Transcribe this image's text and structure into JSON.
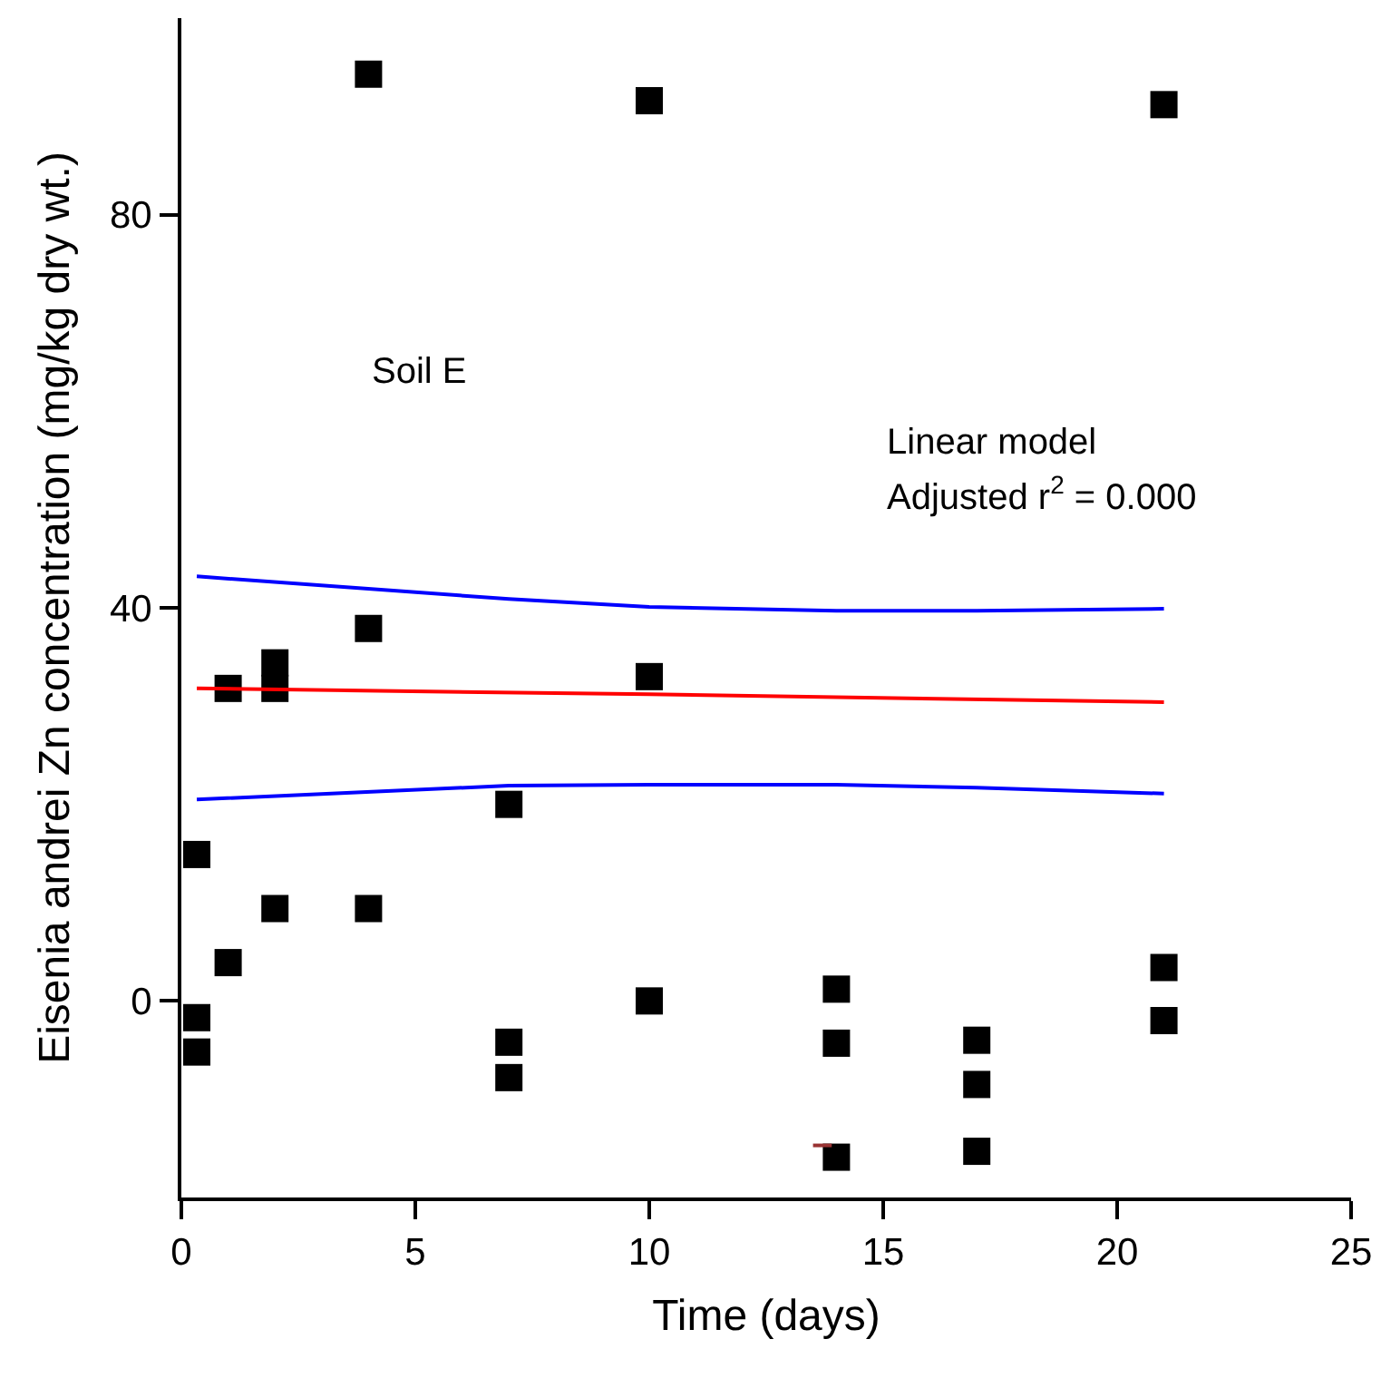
{
  "chart_data": {
    "type": "scatter",
    "xlabel": "Time (days)",
    "ylabel": "Eisenia andrei Zn concentration (mg/kg dry wt.)",
    "annotations": [
      "Soil E",
      "Linear model",
      "Adjusted r$^{2}$ = 0.000"
    ],
    "xlim": [
      0,
      25
    ],
    "xticks": [
      0,
      5,
      10,
      15,
      20,
      25
    ],
    "ylim": [
      -20,
      100
    ],
    "yticks": [
      0,
      40,
      80
    ],
    "series": [
      {
        "marker": "square",
        "color": "#000000",
        "x": [
          0.33,
          0.33,
          0.33,
          1,
          1,
          2,
          2,
          2,
          4,
          4,
          4,
          7,
          7,
          7,
          10,
          10,
          10,
          14,
          14,
          14,
          17,
          17,
          17,
          21,
          21,
          21
        ],
        "values": [
          14.9,
          -1.7,
          -5.2,
          31.8,
          3.9,
          34.4,
          31.8,
          9.4,
          94.3,
          37.9,
          9.4,
          20.0,
          -4.2,
          -7.8,
          91.6,
          33.0,
          0,
          1.2,
          -4.3,
          -15.9,
          -4.0,
          -8.5,
          -15.3,
          91.2,
          3.4,
          -2.0
        ]
      },
      {
        "type": "line",
        "marker": "none",
        "color": "#ff0000",
        "x": [
          0.33,
          10,
          21
        ],
        "values": [
          31.8,
          31.2,
          30.4
        ]
      },
      {
        "type": "line",
        "marker": "none",
        "color": "#0000ff",
        "x": [
          0.33,
          7,
          10,
          14,
          17,
          21
        ],
        "values": [
          43.2,
          40.9,
          40.1,
          39.7,
          39.7,
          39.9
        ]
      },
      {
        "type": "line",
        "marker": "none",
        "color": "#0000ff",
        "x": [
          0.33,
          7,
          10,
          14,
          17,
          21
        ],
        "values": [
          20.5,
          21.9,
          22.0,
          22.0,
          21.7,
          21.1
        ]
      },
      {
        "type": "line",
        "marker": "none",
        "color": "#993333",
        "x": [
          13.5,
          13.9
        ],
        "values": [
          -14.7,
          -14.7
        ]
      }
    ]
  }
}
